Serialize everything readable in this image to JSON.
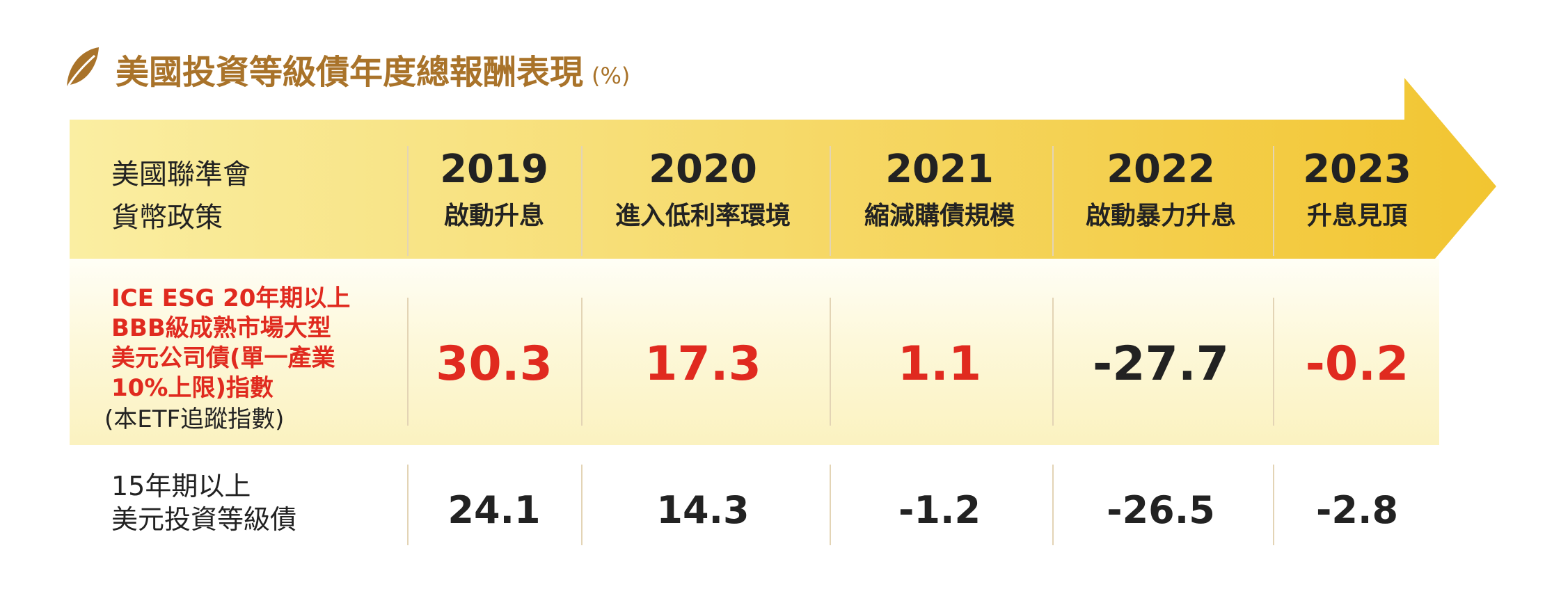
{
  "title": "美國投資等級債年度總報酬表現",
  "unit": "(%)",
  "colors": {
    "title": "#a9732a",
    "red": "#e02a1f",
    "dark": "#222222",
    "arrow_light": "#faeea2",
    "arrow_dark": "#f2c531",
    "highlight_band": "#fcf6cf",
    "divider": "#e3d4b5"
  },
  "chart_data": {
    "type": "table",
    "header": {
      "label_lines": [
        "美國聯準會",
        "貨幣政策"
      ]
    },
    "columns": [
      {
        "year": "2019",
        "event": "啟動升息"
      },
      {
        "year": "2020",
        "event": "進入低利率環境"
      },
      {
        "year": "2021",
        "event": "縮減購債規模"
      },
      {
        "year": "2022",
        "event": "啟動暴力升息"
      },
      {
        "year": "2023",
        "event": "升息見頂"
      }
    ],
    "rows": [
      {
        "label_lines": [
          "ICE  ESG  20年期以上",
          "BBB級成熟市場大型",
          "美元公司債(單一產業",
          "10%上限)指數"
        ],
        "note": "(本ETF追蹤指數)",
        "values": [
          "30.3",
          "17.3",
          "1.1",
          "-27.7",
          "-0.2"
        ],
        "value_colors": [
          "#e02a1f",
          "#e02a1f",
          "#e02a1f",
          "#222222",
          "#e02a1f"
        ]
      },
      {
        "label_lines": [
          "15年期以上",
          "美元投資等級債"
        ],
        "values": [
          "24.1",
          "14.3",
          "-1.2",
          "-26.5",
          "-2.8"
        ],
        "value_colors": [
          "#222222",
          "#222222",
          "#222222",
          "#222222",
          "#222222"
        ]
      }
    ]
  }
}
